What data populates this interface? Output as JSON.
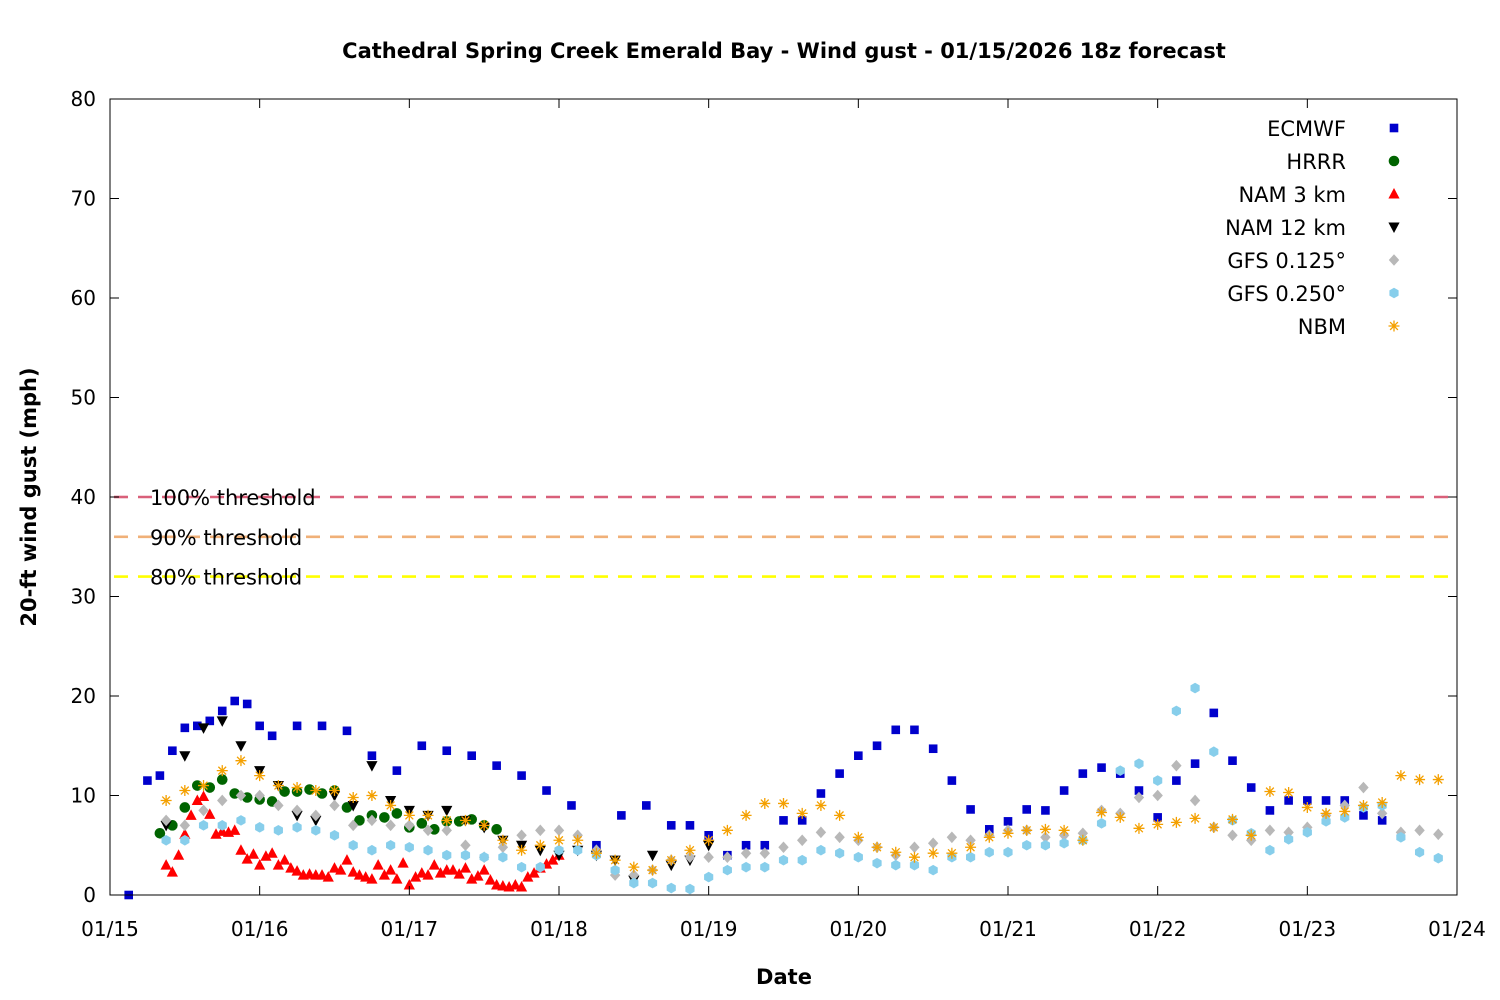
{
  "chart_data": {
    "type": "scatter",
    "title": "Cathedral Spring Creek Emerald Bay - Wind gust - 01/15/2026 18z forecast",
    "xlabel": "Date",
    "ylabel": "20-ft wind gust (mph)",
    "x_unit": "date (MM/DD, 2026)",
    "xlim": [
      "01/15",
      "01/24"
    ],
    "ylim": [
      0,
      80
    ],
    "x_ticks": [
      "01/15",
      "01/16",
      "01/17",
      "01/18",
      "01/19",
      "01/20",
      "01/21",
      "01/22",
      "01/23",
      "01/24"
    ],
    "y_ticks": [
      0,
      10,
      20,
      30,
      40,
      50,
      60,
      70,
      80
    ],
    "legend_position": "top-right",
    "grid": false,
    "thresholds": [
      {
        "label": "100% threshold",
        "value": 40,
        "color": "#d9607a"
      },
      {
        "label": "90% threshold",
        "value": 36,
        "color": "#f0b078"
      },
      {
        "label": "80% threshold",
        "value": 32,
        "color": "#ffff00"
      }
    ],
    "series": [
      {
        "name": "ECMWF",
        "marker": "square",
        "color": "#0000cc",
        "x": [
          "01/15 03:00",
          "01/15 06:00",
          "01/15 08:00",
          "01/15 10:00",
          "01/15 12:00",
          "01/15 14:00",
          "01/15 16:00",
          "01/15 18:00",
          "01/15 20:00",
          "01/15 22:00",
          "01/16 00:00",
          "01/16 02:00",
          "01/16 06:00",
          "01/16 10:00",
          "01/16 14:00",
          "01/16 18:00",
          "01/16 22:00",
          "01/17 02:00",
          "01/17 06:00",
          "01/17 10:00",
          "01/17 14:00",
          "01/17 18:00",
          "01/17 22:00",
          "01/18 02:00",
          "01/18 06:00",
          "01/18 10:00",
          "01/18 14:00",
          "01/18 18:00",
          "01/18 21:00",
          "01/19 00:00",
          "01/19 03:00",
          "01/19 06:00",
          "01/19 09:00",
          "01/19 12:00",
          "01/19 15:00",
          "01/19 18:00",
          "01/19 21:00",
          "01/20 00:00",
          "01/20 03:00",
          "01/20 06:00",
          "01/20 09:00",
          "01/20 12:00",
          "01/20 15:00",
          "01/20 18:00",
          "01/20 21:00",
          "01/21 00:00",
          "01/21 03:00",
          "01/21 06:00",
          "01/21 09:00",
          "01/21 12:00",
          "01/21 15:00",
          "01/21 18:00",
          "01/21 21:00",
          "01/22 00:00",
          "01/22 03:00",
          "01/22 06:00",
          "01/22 09:00",
          "01/22 12:00",
          "01/22 15:00",
          "01/22 18:00",
          "01/22 21:00",
          "01/23 00:00",
          "01/23 03:00",
          "01/23 06:00",
          "01/23 09:00",
          "01/23 12:00"
        ],
        "y": [
          0,
          11.5,
          12,
          14.5,
          16.8,
          17,
          17.5,
          18.5,
          19.5,
          19.2,
          17,
          16,
          17,
          17,
          16.5,
          14,
          12.5,
          15,
          14.5,
          14,
          13,
          12,
          10.5,
          9,
          5,
          8,
          9,
          7,
          7,
          6,
          4,
          5,
          5,
          7.5,
          7.5,
          10.2,
          12.2,
          14,
          15,
          16.6,
          16.6,
          14.7,
          11.5,
          8.6,
          6.6,
          7.4,
          8.6,
          8.5,
          10.5,
          12.2,
          12.8,
          12.2,
          10.5,
          7.8,
          11.5,
          13.2,
          18.3,
          13.5,
          10.8,
          8.5,
          9.5,
          9.5,
          9.5,
          9.5,
          8,
          7.5
        ]
      },
      {
        "name": "HRRR",
        "marker": "circle",
        "color": "#006400",
        "x": [
          "01/15 08:00",
          "01/15 10:00",
          "01/15 12:00",
          "01/15 14:00",
          "01/15 16:00",
          "01/15 18:00",
          "01/15 20:00",
          "01/15 22:00",
          "01/16 00:00",
          "01/16 02:00",
          "01/16 04:00",
          "01/16 06:00",
          "01/16 08:00",
          "01/16 10:00",
          "01/16 12:00",
          "01/16 14:00",
          "01/16 16:00",
          "01/16 18:00",
          "01/16 20:00",
          "01/16 22:00",
          "01/17 00:00",
          "01/17 02:00",
          "01/17 04:00",
          "01/17 06:00",
          "01/17 08:00",
          "01/17 10:00",
          "01/17 12:00",
          "01/17 14:00"
        ],
        "y": [
          6.2,
          7,
          8.8,
          11,
          10.8,
          11.6,
          10.2,
          9.8,
          9.6,
          9.4,
          10.4,
          10.4,
          10.6,
          10.2,
          10.5,
          8.8,
          7.5,
          8,
          7.8,
          8.2,
          6.8,
          7.2,
          6.6,
          7.4,
          7.4,
          7.6,
          7,
          6.6
        ]
      },
      {
        "name": "NAM 3 km",
        "marker": "triangle-up",
        "color": "#ff0000",
        "x": [
          "01/15 09:00",
          "01/15 10:00",
          "01/15 11:00",
          "01/15 12:00",
          "01/15 13:00",
          "01/15 14:00",
          "01/15 15:00",
          "01/15 16:00",
          "01/15 17:00",
          "01/15 18:00",
          "01/15 19:00",
          "01/15 20:00",
          "01/15 21:00",
          "01/15 22:00",
          "01/15 23:00",
          "01/16 00:00",
          "01/16 01:00",
          "01/16 02:00",
          "01/16 03:00",
          "01/16 04:00",
          "01/16 05:00",
          "01/16 06:00",
          "01/16 07:00",
          "01/16 08:00",
          "01/16 09:00",
          "01/16 10:00",
          "01/16 11:00",
          "01/16 12:00",
          "01/16 13:00",
          "01/16 14:00",
          "01/16 15:00",
          "01/16 16:00",
          "01/16 17:00",
          "01/16 18:00",
          "01/16 19:00",
          "01/16 20:00",
          "01/16 21:00",
          "01/16 22:00",
          "01/16 23:00",
          "01/17 00:00",
          "01/17 01:00",
          "01/17 02:00",
          "01/17 03:00",
          "01/17 04:00",
          "01/17 05:00",
          "01/17 06:00",
          "01/17 07:00",
          "01/17 08:00",
          "01/17 09:00",
          "01/17 10:00",
          "01/17 11:00",
          "01/17 12:00",
          "01/17 13:00",
          "01/17 14:00",
          "01/17 15:00",
          "01/17 16:00",
          "01/17 17:00",
          "01/17 18:00",
          "01/17 19:00",
          "01/17 20:00",
          "01/17 21:00",
          "01/17 22:00",
          "01/17 23:00",
          "01/18 00:00"
        ],
        "y": [
          3,
          2.3,
          4,
          6.1,
          8,
          9.5,
          9.9,
          8.1,
          6.1,
          6.4,
          6.3,
          6.5,
          4.5,
          3.6,
          4.1,
          3,
          3.9,
          4.2,
          3,
          3.5,
          2.7,
          2.4,
          2,
          2.1,
          2,
          2,
          1.8,
          2.7,
          2.5,
          3.5,
          2.3,
          2,
          1.8,
          1.6,
          3,
          2,
          2.5,
          1.6,
          3.2,
          1,
          1.8,
          2.2,
          2,
          3,
          2.2,
          2.5,
          2.5,
          2.1,
          2.7,
          1.6,
          1.9,
          2.5,
          1.5,
          1,
          0.9,
          0.8,
          1,
          0.8,
          1.8,
          2.2,
          2.7,
          3.1,
          3.5,
          4
        ]
      },
      {
        "name": "NAM 12 km",
        "marker": "triangle-down",
        "color": "#000000",
        "x": [
          "01/15 09:00",
          "01/15 12:00",
          "01/15 15:00",
          "01/15 18:00",
          "01/15 21:00",
          "01/16 00:00",
          "01/16 03:00",
          "01/16 06:00",
          "01/16 09:00",
          "01/16 12:00",
          "01/16 15:00",
          "01/16 18:00",
          "01/16 21:00",
          "01/17 00:00",
          "01/17 03:00",
          "01/17 06:00",
          "01/17 09:00",
          "01/17 12:00",
          "01/17 15:00",
          "01/17 18:00",
          "01/17 21:00",
          "01/18 00:00",
          "01/18 03:00",
          "01/18 06:00",
          "01/18 09:00",
          "01/18 12:00",
          "01/18 15:00",
          "01/18 18:00",
          "01/18 21:00",
          "01/19 00:00"
        ],
        "y": [
          7,
          14,
          16.8,
          17.5,
          15,
          12.5,
          11,
          8,
          7.5,
          10,
          9,
          13,
          9.5,
          8.5,
          8,
          8.5,
          7.5,
          6.8,
          5.5,
          5,
          4.5,
          4,
          4.5,
          4,
          3.5,
          1.5,
          4,
          3,
          3.5,
          5
        ]
      },
      {
        "name": "GFS 0.125°",
        "marker": "diamond",
        "color": "#b8b8b8",
        "x": [
          "01/15 09:00",
          "01/15 12:00",
          "01/15 15:00",
          "01/15 18:00",
          "01/15 21:00",
          "01/16 00:00",
          "01/16 03:00",
          "01/16 06:00",
          "01/16 09:00",
          "01/16 12:00",
          "01/16 15:00",
          "01/16 18:00",
          "01/16 21:00",
          "01/17 00:00",
          "01/17 03:00",
          "01/17 06:00",
          "01/17 09:00",
          "01/17 12:00",
          "01/17 15:00",
          "01/17 18:00",
          "01/17 21:00",
          "01/18 00:00",
          "01/18 03:00",
          "01/18 06:00",
          "01/18 09:00",
          "01/18 12:00",
          "01/18 15:00",
          "01/18 18:00",
          "01/18 21:00",
          "01/19 00:00",
          "01/19 03:00",
          "01/19 06:00",
          "01/19 09:00",
          "01/19 12:00",
          "01/19 15:00",
          "01/19 18:00",
          "01/19 21:00",
          "01/20 00:00",
          "01/20 03:00",
          "01/20 06:00",
          "01/20 09:00",
          "01/20 12:00",
          "01/20 15:00",
          "01/20 18:00",
          "01/20 21:00",
          "01/21 00:00",
          "01/21 03:00",
          "01/21 06:00",
          "01/21 09:00",
          "01/21 12:00",
          "01/21 15:00",
          "01/21 18:00",
          "01/21 21:00",
          "01/22 00:00",
          "01/22 03:00",
          "01/22 06:00",
          "01/22 09:00",
          "01/22 12:00",
          "01/22 15:00",
          "01/22 18:00",
          "01/22 21:00",
          "01/23 00:00",
          "01/23 03:00",
          "01/23 06:00",
          "01/23 09:00",
          "01/23 12:00",
          "01/23 15:00",
          "01/23 18:00",
          "01/23 21:00"
        ],
        "y": [
          7.5,
          7,
          8.5,
          9.5,
          10,
          10,
          9,
          8.5,
          8,
          9,
          7,
          7.5,
          7,
          7,
          6.5,
          6.5,
          5,
          3.8,
          4.8,
          6,
          6.5,
          6.5,
          6,
          4.5,
          2,
          2,
          2.5,
          3.5,
          3.8,
          3.8,
          3.8,
          4.2,
          4.2,
          4.8,
          5.5,
          6.3,
          5.8,
          5.5,
          4.8,
          4,
          4.8,
          5.2,
          5.8,
          5.5,
          6,
          6.5,
          6.5,
          5.8,
          6,
          6.2,
          8.5,
          8.2,
          9.8,
          10,
          13,
          9.5,
          6.8,
          6,
          5.5,
          6.5,
          6.3,
          6.8,
          8,
          9,
          10.8,
          8.2,
          6.3,
          6.5,
          6.1
        ]
      },
      {
        "name": "GFS 0.250°",
        "marker": "hexagon",
        "color": "#87ceeb",
        "x": [
          "01/15 09:00",
          "01/15 12:00",
          "01/15 15:00",
          "01/15 18:00",
          "01/15 21:00",
          "01/16 00:00",
          "01/16 03:00",
          "01/16 06:00",
          "01/16 09:00",
          "01/16 12:00",
          "01/16 15:00",
          "01/16 18:00",
          "01/16 21:00",
          "01/17 00:00",
          "01/17 03:00",
          "01/17 06:00",
          "01/17 09:00",
          "01/17 12:00",
          "01/17 15:00",
          "01/17 18:00",
          "01/17 21:00",
          "01/18 00:00",
          "01/18 03:00",
          "01/18 06:00",
          "01/18 09:00",
          "01/18 12:00",
          "01/18 15:00",
          "01/18 18:00",
          "01/18 21:00",
          "01/19 00:00",
          "01/19 03:00",
          "01/19 06:00",
          "01/19 09:00",
          "01/19 12:00",
          "01/19 15:00",
          "01/19 18:00",
          "01/19 21:00",
          "01/20 00:00",
          "01/20 03:00",
          "01/20 06:00",
          "01/20 09:00",
          "01/20 12:00",
          "01/20 15:00",
          "01/20 18:00",
          "01/20 21:00",
          "01/21 00:00",
          "01/21 03:00",
          "01/21 06:00",
          "01/21 09:00",
          "01/21 12:00",
          "01/21 15:00",
          "01/21 18:00",
          "01/21 21:00",
          "01/22 00:00",
          "01/22 03:00",
          "01/22 06:00",
          "01/22 09:00",
          "01/22 12:00",
          "01/22 15:00",
          "01/22 18:00",
          "01/22 21:00",
          "01/23 00:00",
          "01/23 03:00",
          "01/23 06:00",
          "01/23 09:00",
          "01/23 12:00",
          "01/23 15:00",
          "01/23 18:00",
          "01/23 21:00"
        ],
        "y": [
          5.5,
          5.5,
          7,
          7,
          7.5,
          6.8,
          6.5,
          6.8,
          6.5,
          6,
          5,
          4.5,
          5,
          4.8,
          4.5,
          4,
          4,
          3.8,
          3.8,
          2.8,
          2.8,
          4.5,
          4.5,
          4,
          2.5,
          1.2,
          1.2,
          0.7,
          0.6,
          1.8,
          2.5,
          2.8,
          2.8,
          3.5,
          3.5,
          4.5,
          4.2,
          3.8,
          3.2,
          3,
          3,
          2.5,
          3.8,
          3.8,
          4.3,
          4.3,
          5,
          5,
          5.2,
          5.5,
          7.2,
          12.5,
          13.2,
          11.5,
          18.5,
          20.8,
          14.4,
          7.5,
          6.2,
          4.5,
          5.6,
          6.3,
          7.4,
          7.8,
          8.8,
          9,
          5.8,
          4.3,
          3.7
        ]
      },
      {
        "name": "NBM",
        "marker": "asterisk",
        "color": "#f4a000",
        "x": [
          "01/15 09:00",
          "01/15 12:00",
          "01/15 15:00",
          "01/15 18:00",
          "01/15 21:00",
          "01/16 00:00",
          "01/16 03:00",
          "01/16 06:00",
          "01/16 09:00",
          "01/16 12:00",
          "01/16 15:00",
          "01/16 18:00",
          "01/16 21:00",
          "01/17 00:00",
          "01/17 03:00",
          "01/17 06:00",
          "01/17 09:00",
          "01/17 12:00",
          "01/17 15:00",
          "01/17 18:00",
          "01/17 21:00",
          "01/18 00:00",
          "01/18 03:00",
          "01/18 06:00",
          "01/18 09:00",
          "01/18 12:00",
          "01/18 15:00",
          "01/18 18:00",
          "01/18 21:00",
          "01/19 00:00",
          "01/19 03:00",
          "01/19 06:00",
          "01/19 09:00",
          "01/19 12:00",
          "01/19 15:00",
          "01/19 18:00",
          "01/19 21:00",
          "01/20 00:00",
          "01/20 03:00",
          "01/20 06:00",
          "01/20 09:00",
          "01/20 12:00",
          "01/20 15:00",
          "01/20 18:00",
          "01/20 21:00",
          "01/21 00:00",
          "01/21 03:00",
          "01/21 06:00",
          "01/21 09:00",
          "01/21 12:00",
          "01/21 15:00",
          "01/21 18:00",
          "01/21 21:00",
          "01/22 00:00",
          "01/22 03:00",
          "01/22 06:00",
          "01/22 09:00",
          "01/22 12:00",
          "01/22 15:00",
          "01/22 18:00",
          "01/22 21:00",
          "01/23 00:00",
          "01/23 03:00",
          "01/23 06:00",
          "01/23 09:00",
          "01/23 12:00",
          "01/23 15:00",
          "01/23 18:00",
          "01/23 21:00"
        ],
        "y": [
          9.5,
          10.5,
          11,
          12.5,
          13.5,
          12,
          11,
          10.8,
          10.5,
          10.5,
          9.8,
          10,
          9,
          8,
          8,
          7.5,
          7.5,
          7,
          5.5,
          4.5,
          5,
          5.5,
          5.5,
          4.2,
          3.5,
          2.8,
          2.5,
          3.5,
          4.5,
          5.5,
          6.5,
          8,
          9.2,
          9.2,
          8.2,
          9,
          8,
          5.8,
          4.8,
          4.3,
          3.8,
          4.2,
          4.2,
          4.8,
          5.8,
          6.2,
          6.5,
          6.6,
          6.5,
          5.5,
          8.3,
          7.8,
          6.7,
          7.1,
          7.3,
          7.7,
          6.8,
          7.6,
          6,
          10.4,
          10.3,
          8.8,
          8.2,
          8.4,
          9,
          9.3,
          12,
          11.6,
          11.6
        ]
      }
    ]
  }
}
